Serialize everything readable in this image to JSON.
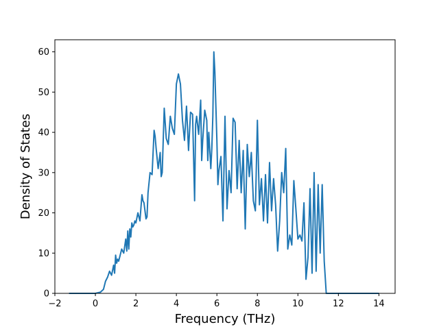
{
  "chart_data": {
    "type": "line",
    "title": "",
    "xlabel": "Frequency (THz)",
    "ylabel": "Density of States",
    "xlim": [
      -2.0,
      14.8
    ],
    "ylim": [
      0,
      63
    ],
    "xticks": [
      -2,
      0,
      2,
      4,
      6,
      8,
      10,
      12,
      14
    ],
    "yticks": [
      0,
      10,
      20,
      30,
      40,
      50,
      60
    ],
    "grid": false,
    "legend": "none",
    "series": [
      {
        "name": "",
        "color": "#1f77b4",
        "x": [
          -1.3,
          0.0,
          0.25,
          0.4,
          0.5,
          0.6,
          0.7,
          0.8,
          0.9,
          0.95,
          1.0,
          1.05,
          1.1,
          1.15,
          1.2,
          1.3,
          1.4,
          1.5,
          1.55,
          1.6,
          1.65,
          1.7,
          1.75,
          1.8,
          1.85,
          1.9,
          1.95,
          2.0,
          2.1,
          2.2,
          2.3,
          2.35,
          2.4,
          2.5,
          2.55,
          2.6,
          2.7,
          2.8,
          2.9,
          2.95,
          3.0,
          3.1,
          3.2,
          3.25,
          3.3,
          3.4,
          3.5,
          3.6,
          3.7,
          3.8,
          3.9,
          4.0,
          4.1,
          4.2,
          4.3,
          4.4,
          4.5,
          4.6,
          4.7,
          4.8,
          4.9,
          4.95,
          5.0,
          5.1,
          5.2,
          5.25,
          5.3,
          5.4,
          5.5,
          5.55,
          5.6,
          5.7,
          5.75,
          5.8,
          5.85,
          5.9,
          6.0,
          6.05,
          6.1,
          6.2,
          6.3,
          6.4,
          6.5,
          6.6,
          6.7,
          6.8,
          6.9,
          7.0,
          7.1,
          7.2,
          7.3,
          7.4,
          7.5,
          7.6,
          7.7,
          7.8,
          7.9,
          8.0,
          8.1,
          8.2,
          8.3,
          8.4,
          8.5,
          8.6,
          8.7,
          8.8,
          8.9,
          9.0,
          9.1,
          9.2,
          9.3,
          9.4,
          9.5,
          9.6,
          9.7,
          9.8,
          9.9,
          10.0,
          10.1,
          10.2,
          10.3,
          10.4,
          10.5,
          10.6,
          10.7,
          10.8,
          10.9,
          11.0,
          11.1,
          11.2,
          11.3,
          11.4,
          12.0,
          14.0
        ],
        "y": [
          0.0,
          0.0,
          0.3,
          1.0,
          3.0,
          4.0,
          5.5,
          4.5,
          7.0,
          5.0,
          9.5,
          7.5,
          8.5,
          8.0,
          9.0,
          11.0,
          10.0,
          13.5,
          10.5,
          15.5,
          11.0,
          16.0,
          14.0,
          17.5,
          16.5,
          17.0,
          18.0,
          17.5,
          20.0,
          18.0,
          24.5,
          23.0,
          22.5,
          18.5,
          19.0,
          25.0,
          30.0,
          29.5,
          40.5,
          39.0,
          36.0,
          31.0,
          35.0,
          29.0,
          30.0,
          46.0,
          38.5,
          37.0,
          44.0,
          41.0,
          39.5,
          52.0,
          54.5,
          52.0,
          43.0,
          38.0,
          46.5,
          35.5,
          45.0,
          44.5,
          23.0,
          42.0,
          44.0,
          39.5,
          48.0,
          33.0,
          38.0,
          45.5,
          43.0,
          33.0,
          40.0,
          31.0,
          36.0,
          44.0,
          60.0,
          55.0,
          38.0,
          27.0,
          30.5,
          34.0,
          18.0,
          44.0,
          21.0,
          30.5,
          25.0,
          43.5,
          42.5,
          26.0,
          38.0,
          25.0,
          35.5,
          16.0,
          37.0,
          29.0,
          35.0,
          23.0,
          20.5,
          43.0,
          22.0,
          28.5,
          18.0,
          29.5,
          17.5,
          32.5,
          20.5,
          28.5,
          22.0,
          10.5,
          18.0,
          30.0,
          25.0,
          36.0,
          11.0,
          14.5,
          12.0,
          28.0,
          21.0,
          13.5,
          14.5,
          13.0,
          22.5,
          3.5,
          9.0,
          26.0,
          5.0,
          30.0,
          5.5,
          27.0,
          10.0,
          27.0,
          8.0,
          0.0,
          0.0,
          0.0
        ]
      }
    ]
  }
}
